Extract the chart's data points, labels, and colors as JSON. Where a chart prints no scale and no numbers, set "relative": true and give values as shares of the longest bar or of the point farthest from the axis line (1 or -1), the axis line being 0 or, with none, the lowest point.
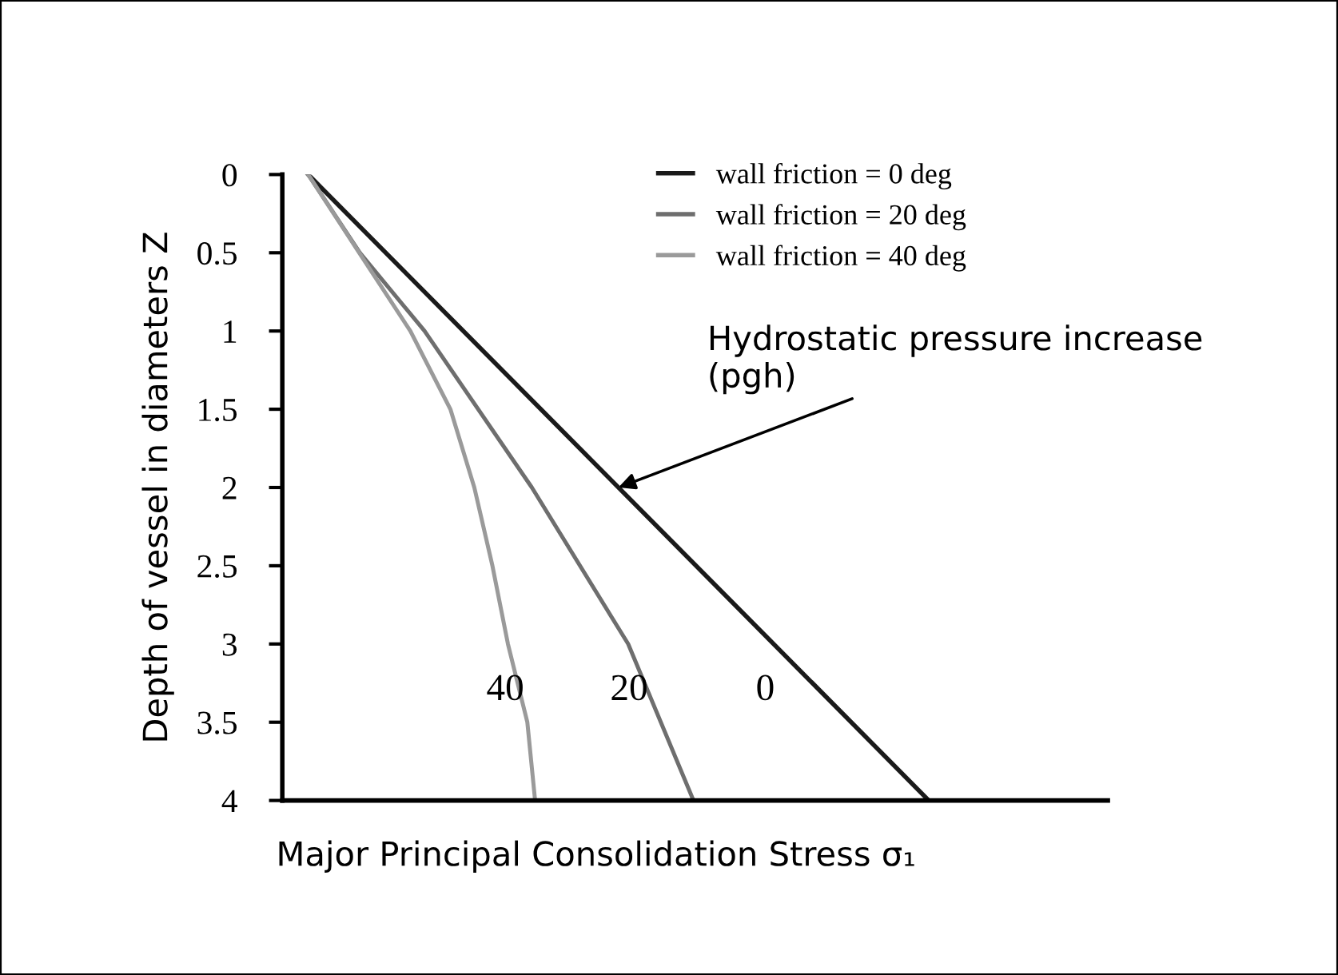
{
  "chart_data": {
    "type": "line",
    "relative": true,
    "orientation": "horizontal",
    "xlabel": "Major Principal Consolidation Stress σ₁",
    "ylabel": "Depth of vessel in diameters Z",
    "ylim": [
      4,
      0
    ],
    "yticks": [
      0,
      0.5,
      1,
      1.5,
      2,
      2.5,
      3,
      3.5,
      4
    ],
    "tick_labels": "y",
    "legend": "top right",
    "marker": "none",
    "line_style": "solid",
    "series": [
      {
        "name": "wall friction = 0 deg",
        "color": "#1a1a1a",
        "x": [
          0,
          4
        ],
        "values": [
          0.04,
          1
        ]
      },
      {
        "name": "wall friction = 20 deg",
        "color": "#6e6e6e",
        "x": [
          0,
          0.5,
          1,
          2,
          3,
          4
        ],
        "values": [
          0.04,
          0.12,
          0.22,
          0.386,
          0.535,
          0.636
        ]
      },
      {
        "name": "wall friction = 40 deg",
        "color": "#9a9a9a",
        "x": [
          0,
          0.5,
          1,
          1.5,
          2,
          2.5,
          3,
          3.5,
          4
        ],
        "values": [
          0.04,
          0.119,
          0.198,
          0.26,
          0.297,
          0.325,
          0.349,
          0.379,
          0.391
        ]
      }
    ],
    "annotations": [
      {
        "text": "Hydrostatic pressure increase\n(pgh)",
        "x": 0.52,
        "y": 2
      },
      "40",
      "20",
      "0"
    ]
  }
}
